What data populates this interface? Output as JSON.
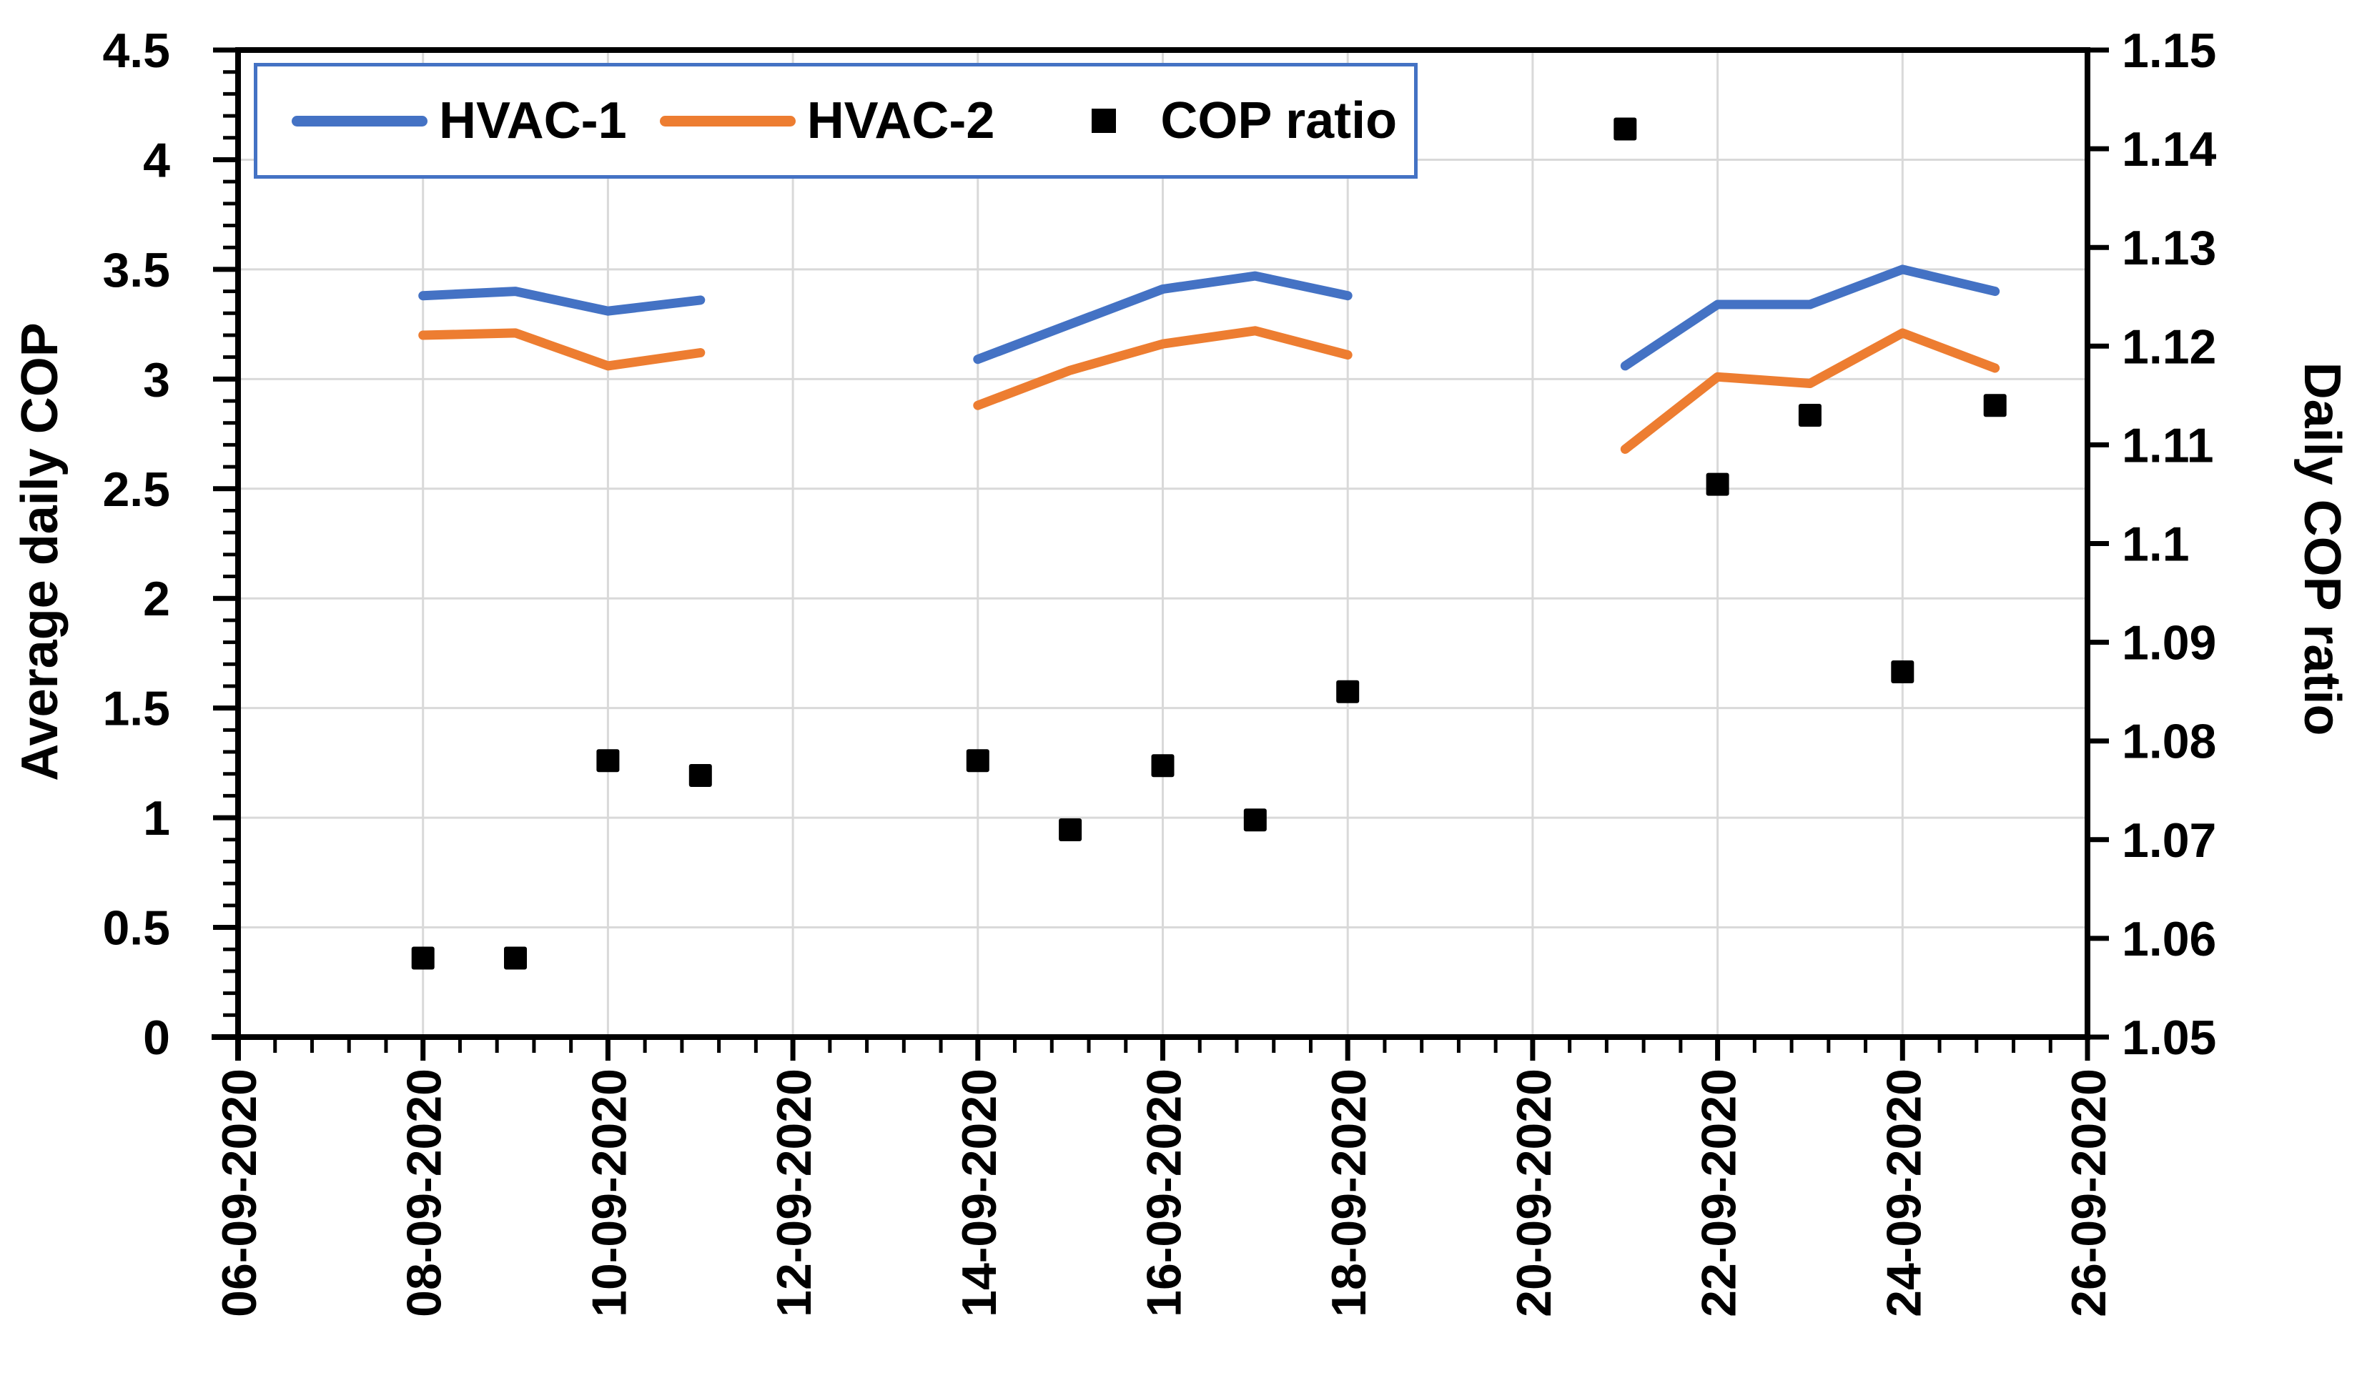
{
  "chart_data": {
    "type": "line",
    "title": "",
    "legend_position": "top-left-inside",
    "grid": true,
    "legend": [
      {
        "label": "HVAC-1",
        "color": "#4472C4",
        "marker": "line"
      },
      {
        "label": "HVAC-2",
        "color": "#ED7D31",
        "marker": "line"
      },
      {
        "label": "COP ratio",
        "color": "#000000",
        "marker": "square"
      }
    ],
    "x_axis": {
      "tick_labels": [
        "06-09-2020",
        "08-09-2020",
        "10-09-2020",
        "12-09-2020",
        "14-09-2020",
        "16-09-2020",
        "18-09-2020",
        "20-09-2020",
        "22-09-2020",
        "24-09-2020",
        "26-09-2020"
      ],
      "days_per_major_tick": 2,
      "minor_ticks_between_major": 4,
      "label_rotation_deg": -90
    },
    "y_left": {
      "label": "Average daily COP",
      "ticks": [
        "0",
        "0.5",
        "1",
        "1.5",
        "2",
        "2.5",
        "3",
        "3.5",
        "4",
        "4.5"
      ],
      "min": 0,
      "max": 4.5,
      "major_step": 0.5,
      "minor_step": 0.1
    },
    "y_right": {
      "label": "Daily COP ratio",
      "ticks": [
        "1.05",
        "1.06",
        "1.07",
        "1.08",
        "1.09",
        "1.1",
        "1.11",
        "1.12",
        "1.13",
        "1.14",
        "1.15"
      ],
      "min": 1.05,
      "max": 1.15,
      "major_step": 0.01
    },
    "series": [
      {
        "name": "HVAC-1",
        "axis": "left",
        "style": "line",
        "color": "#4472C4",
        "points": [
          [
            "08-09-2020",
            3.38
          ],
          [
            "09-09-2020",
            3.4
          ],
          [
            "10-09-2020",
            3.31
          ],
          [
            "11-09-2020",
            3.36
          ],
          [
            "14-09-2020",
            3.09
          ],
          [
            "15-09-2020",
            3.25
          ],
          [
            "16-09-2020",
            3.41
          ],
          [
            "17-09-2020",
            3.47
          ],
          [
            "18-09-2020",
            3.38
          ],
          [
            "21-09-2020",
            3.06
          ],
          [
            "22-09-2020",
            3.34
          ],
          [
            "23-09-2020",
            3.34
          ],
          [
            "24-09-2020",
            3.5
          ],
          [
            "25-09-2020",
            3.4
          ]
        ]
      },
      {
        "name": "HVAC-2",
        "axis": "left",
        "style": "line",
        "color": "#ED7D31",
        "points": [
          [
            "08-09-2020",
            3.2
          ],
          [
            "09-09-2020",
            3.21
          ],
          [
            "10-09-2020",
            3.06
          ],
          [
            "11-09-2020",
            3.12
          ],
          [
            "14-09-2020",
            2.88
          ],
          [
            "15-09-2020",
            3.04
          ],
          [
            "16-09-2020",
            3.16
          ],
          [
            "17-09-2020",
            3.22
          ],
          [
            "18-09-2020",
            3.11
          ],
          [
            "21-09-2020",
            2.68
          ],
          [
            "22-09-2020",
            3.01
          ],
          [
            "23-09-2020",
            2.98
          ],
          [
            "24-09-2020",
            3.21
          ],
          [
            "25-09-2020",
            3.05
          ]
        ]
      },
      {
        "name": "COP ratio",
        "axis": "right",
        "style": "scatter-square",
        "color": "#000000",
        "points": [
          [
            "08-09-2020",
            1.058
          ],
          [
            "09-09-2020",
            1.058
          ],
          [
            "10-09-2020",
            1.078
          ],
          [
            "11-09-2020",
            1.0765
          ],
          [
            "14-09-2020",
            1.078
          ],
          [
            "15-09-2020",
            1.071
          ],
          [
            "16-09-2020",
            1.0775
          ],
          [
            "17-09-2020",
            1.072
          ],
          [
            "18-09-2020",
            1.085
          ],
          [
            "21-09-2020",
            1.142
          ],
          [
            "22-09-2020",
            1.106
          ],
          [
            "23-09-2020",
            1.113
          ],
          [
            "24-09-2020",
            1.087
          ],
          [
            "25-09-2020",
            1.114
          ]
        ]
      }
    ],
    "colors": {
      "grid": "#D9D9D9",
      "axis": "#000000",
      "legend_border": "#4472C4",
      "background": "#FFFFFF"
    }
  }
}
